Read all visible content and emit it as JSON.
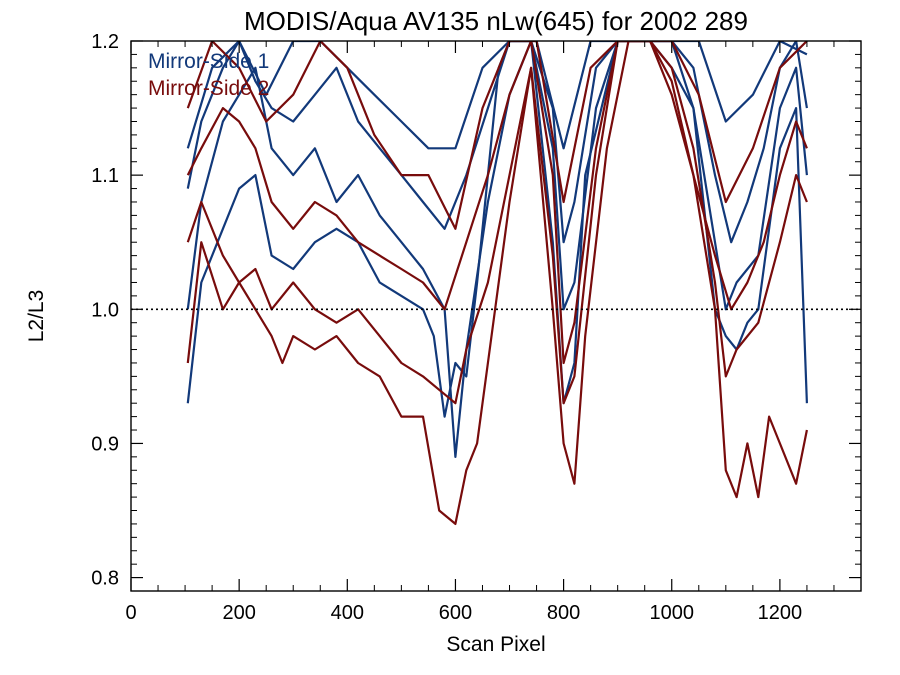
{
  "chart_data": {
    "type": "line",
    "title": "MODIS/Aqua AV135 nLw(645) for 2002 289",
    "xlabel": "Scan Pixel",
    "ylabel": "L2/L3",
    "xlim": [
      0,
      1350
    ],
    "ylim": [
      0.79,
      1.2
    ],
    "x_ticks": [
      0,
      200,
      400,
      600,
      800,
      1000,
      1200
    ],
    "x_tick_labels": [
      "0",
      "200",
      "400",
      "600",
      "800",
      "1000",
      "1200"
    ],
    "y_ticks": [
      0.8,
      0.9,
      1.0,
      1.1,
      1.2
    ],
    "y_tick_labels": [
      "0.8",
      "0.9",
      "1.0",
      "1.1",
      "1.2"
    ],
    "reference_line": {
      "y": 1.0,
      "style": "dotted"
    },
    "legend": {
      "placement": "top-left",
      "entries": [
        "Mirror-Side 1",
        "Mirror-Side 2"
      ]
    },
    "colors": {
      "Mirror-Side 1": "#12397a",
      "Mirror-Side 2": "#780c0c"
    },
    "grid": false,
    "series": [
      {
        "name": "Mirror-Side 1",
        "color": "#12397a",
        "x": [
          105,
          130,
          170,
          200,
          230,
          260,
          300,
          340,
          380,
          420,
          460,
          500,
          540,
          560,
          580,
          600,
          620,
          640,
          660,
          680,
          700,
          740,
          780,
          800,
          820,
          840,
          900,
          960,
          1000,
          1040,
          1080,
          1100,
          1120,
          1140,
          1160,
          1200,
          1230,
          1250
        ],
        "y": [
          0.93,
          1.02,
          1.06,
          1.09,
          1.1,
          1.04,
          1.03,
          1.05,
          1.06,
          1.05,
          1.02,
          1.01,
          1.0,
          0.98,
          0.92,
          0.96,
          0.95,
          1.02,
          1.1,
          1.18,
          1.2,
          1.2,
          1.05,
          0.93,
          0.96,
          1.1,
          1.2,
          1.2,
          1.2,
          1.15,
          1.0,
          0.98,
          0.97,
          0.99,
          1.0,
          1.12,
          1.15,
          0.93
        ]
      },
      {
        "name": "Mirror-Side 1",
        "color": "#12397a",
        "x": [
          105,
          130,
          170,
          200,
          230,
          260,
          300,
          340,
          380,
          420,
          460,
          500,
          540,
          580,
          600,
          620,
          660,
          700,
          740,
          780,
          800,
          820,
          860,
          900,
          960,
          1000,
          1040,
          1080,
          1100,
          1120,
          1160,
          1200,
          1230,
          1250
        ],
        "y": [
          1.0,
          1.08,
          1.14,
          1.16,
          1.18,
          1.12,
          1.1,
          1.12,
          1.08,
          1.1,
          1.07,
          1.05,
          1.03,
          1.0,
          0.89,
          0.97,
          1.08,
          1.16,
          1.2,
          1.12,
          1.0,
          1.02,
          1.15,
          1.2,
          1.2,
          1.18,
          1.15,
          1.05,
          1.0,
          1.02,
          1.04,
          1.15,
          1.18,
          1.1
        ]
      },
      {
        "name": "Mirror-Side 1",
        "color": "#12397a",
        "x": [
          105,
          130,
          170,
          200,
          230,
          260,
          300,
          340,
          380,
          420,
          460,
          500,
          540,
          580,
          620,
          660,
          700,
          740,
          780,
          800,
          820,
          860,
          900,
          960,
          1000,
          1040,
          1080,
          1110,
          1140,
          1170,
          1200,
          1230,
          1250
        ],
        "y": [
          1.09,
          1.14,
          1.18,
          1.2,
          1.17,
          1.15,
          1.14,
          1.16,
          1.18,
          1.14,
          1.12,
          1.1,
          1.08,
          1.06,
          1.1,
          1.15,
          1.2,
          1.2,
          1.15,
          1.05,
          1.08,
          1.18,
          1.2,
          1.2,
          1.2,
          1.18,
          1.1,
          1.05,
          1.08,
          1.12,
          1.18,
          1.2,
          1.15
        ]
      },
      {
        "name": "Mirror-Side 1",
        "color": "#12397a",
        "x": [
          105,
          150,
          200,
          250,
          300,
          350,
          400,
          450,
          500,
          550,
          600,
          650,
          700,
          750,
          800,
          850,
          900,
          950,
          1000,
          1050,
          1100,
          1150,
          1200,
          1250
        ],
        "y": [
          1.12,
          1.18,
          1.2,
          1.16,
          1.2,
          1.2,
          1.18,
          1.16,
          1.14,
          1.12,
          1.12,
          1.18,
          1.2,
          1.2,
          1.12,
          1.2,
          1.2,
          1.2,
          1.2,
          1.2,
          1.14,
          1.16,
          1.2,
          1.19
        ]
      },
      {
        "name": "Mirror-Side 2",
        "color": "#780c0c",
        "x": [
          105,
          130,
          170,
          200,
          230,
          260,
          280,
          300,
          340,
          380,
          420,
          460,
          500,
          540,
          570,
          600,
          620,
          640,
          660,
          680,
          700,
          740,
          780,
          800,
          820,
          840,
          880,
          920,
          960,
          1000,
          1040,
          1080,
          1100,
          1120,
          1140,
          1160,
          1180,
          1200,
          1230,
          1250
        ],
        "y": [
          0.96,
          1.05,
          1.0,
          1.02,
          1.0,
          0.98,
          0.96,
          0.98,
          0.97,
          0.98,
          0.96,
          0.95,
          0.92,
          0.92,
          0.85,
          0.84,
          0.88,
          0.9,
          0.96,
          1.02,
          1.08,
          1.18,
          1.0,
          0.9,
          0.87,
          0.98,
          1.12,
          1.2,
          1.2,
          1.17,
          1.1,
          1.0,
          0.88,
          0.86,
          0.9,
          0.86,
          0.92,
          0.9,
          0.87,
          0.91
        ]
      },
      {
        "name": "Mirror-Side 2",
        "color": "#780c0c",
        "x": [
          105,
          130,
          170,
          200,
          230,
          260,
          300,
          340,
          380,
          420,
          460,
          500,
          540,
          570,
          600,
          620,
          660,
          700,
          740,
          780,
          800,
          820,
          860,
          900,
          960,
          1000,
          1040,
          1080,
          1100,
          1120,
          1160,
          1200,
          1230,
          1250
        ],
        "y": [
          1.05,
          1.08,
          1.04,
          1.02,
          1.03,
          1.0,
          1.02,
          1.0,
          0.99,
          1.0,
          0.98,
          0.96,
          0.95,
          0.94,
          0.93,
          0.97,
          1.02,
          1.1,
          1.18,
          1.04,
          0.93,
          0.95,
          1.1,
          1.2,
          1.2,
          1.18,
          1.12,
          1.02,
          0.95,
          0.97,
          0.99,
          1.05,
          1.1,
          1.08
        ]
      },
      {
        "name": "Mirror-Side 2",
        "color": "#780c0c",
        "x": [
          105,
          130,
          170,
          200,
          230,
          260,
          300,
          340,
          380,
          420,
          460,
          500,
          540,
          580,
          620,
          660,
          700,
          740,
          780,
          800,
          820,
          860,
          900,
          960,
          1000,
          1040,
          1080,
          1110,
          1140,
          1170,
          1200,
          1230,
          1250
        ],
        "y": [
          1.1,
          1.12,
          1.15,
          1.14,
          1.12,
          1.08,
          1.06,
          1.08,
          1.07,
          1.05,
          1.04,
          1.03,
          1.02,
          1.0,
          1.05,
          1.1,
          1.16,
          1.2,
          1.1,
          0.96,
          0.99,
          1.12,
          1.2,
          1.2,
          1.16,
          1.1,
          1.04,
          1.0,
          1.02,
          1.05,
          1.1,
          1.14,
          1.12
        ]
      },
      {
        "name": "Mirror-Side 2",
        "color": "#780c0c",
        "x": [
          105,
          150,
          200,
          250,
          300,
          350,
          400,
          450,
          500,
          550,
          600,
          650,
          700,
          750,
          800,
          850,
          900,
          950,
          1000,
          1050,
          1100,
          1150,
          1200,
          1250
        ],
        "y": [
          1.15,
          1.2,
          1.18,
          1.14,
          1.16,
          1.2,
          1.18,
          1.13,
          1.1,
          1.1,
          1.06,
          1.15,
          1.2,
          1.2,
          1.08,
          1.18,
          1.2,
          1.2,
          1.2,
          1.16,
          1.08,
          1.12,
          1.18,
          1.2
        ]
      }
    ]
  }
}
